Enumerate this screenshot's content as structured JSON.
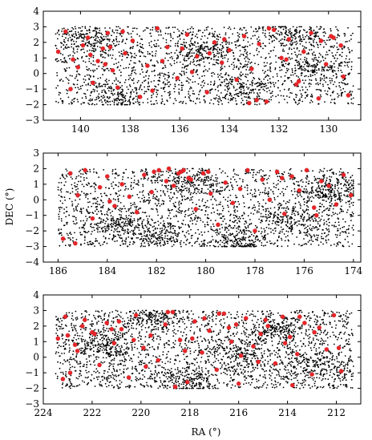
{
  "figure": {
    "shared_ylabel": "DEC (°)",
    "shared_xlabel": "RA (°)"
  },
  "chart_data": [
    {
      "type": "scatter",
      "xlim": [
        141.5,
        128.7
      ],
      "ylim": [
        -3,
        4
      ],
      "x_ticks": [
        140,
        138,
        136,
        134,
        132,
        130
      ],
      "x_tick_labels": [
        "140",
        "138",
        "136",
        "134",
        "132",
        "130"
      ],
      "y_ticks": [
        -3,
        -2,
        -1,
        0,
        1,
        2,
        3,
        4
      ],
      "y_tick_labels": [
        "−3",
        "−2",
        "−1",
        "0",
        "1",
        "2",
        "3",
        "4"
      ],
      "grid": false,
      "xlabel": "",
      "ylabel": "",
      "point_cloud": {
        "ra_range": [
          141,
          129
        ],
        "dec_range": [
          -2,
          3
        ],
        "count": 2600,
        "color": "#000000",
        "seed": 11,
        "clumps": [
          [
            139.5,
            2.2
          ],
          [
            135,
            1.5
          ],
          [
            133.5,
            -1
          ],
          [
            131.5,
            2.4
          ],
          [
            130.5,
            0.5
          ],
          [
            138.5,
            -1.5
          ]
        ]
      },
      "series": [
        {
          "marker_color": "#e8252a",
          "x": [
            140.9,
            140.6,
            140.3,
            139.9,
            139.7,
            139.5,
            139.3,
            139.1,
            138.9,
            138.7,
            138.5,
            138.2,
            137.9,
            137.6,
            137.3,
            136.9,
            136.5,
            136.1,
            135.7,
            135.3,
            134.9,
            134.6,
            134.3,
            134.0,
            133.7,
            133.4,
            133.1,
            132.8,
            132.5,
            132.2,
            131.9,
            131.6,
            131.3,
            131.0,
            130.7,
            130.4,
            130.1,
            129.8,
            129.5,
            129.2,
            140.1,
            139.6,
            138.3,
            137.1,
            135.5,
            134.2,
            132.9,
            131.7,
            130.3,
            129.4,
            140.4,
            138.8,
            136.7,
            134.8,
            133.2,
            131.2,
            129.9,
            139.0,
            135.9,
            132.4
          ],
          "y": [
            1.4,
            2.7,
            0.9,
            1.8,
            2.3,
            -0.6,
            0.8,
            1.6,
            2.6,
            0.2,
            -0.9,
            1.3,
            2.1,
            -1.5,
            0.5,
            2.9,
            1.7,
            -0.3,
            2.5,
            1.1,
            -1.2,
            2.0,
            0.7,
            1.5,
            -0.4,
            2.4,
            0.3,
            1.9,
            -1.8,
            2.8,
            1.0,
            2.2,
            -0.7,
            1.4,
            2.6,
            -1.6,
            0.6,
            2.3,
            1.8,
            -1.4,
            0.4,
            1.2,
            2.7,
            -1.1,
            0.1,
            2.2,
            -1.7,
            0.9,
            2.1,
            -0.2,
            -1.0,
            1.7,
            0.8,
            1.3,
            -1.9,
            -0.5,
            2.4,
            0.6,
            1.6,
            2.9
          ]
        }
      ]
    },
    {
      "type": "scatter",
      "xlim": [
        186.6,
        173.7
      ],
      "ylim": [
        -4,
        3
      ],
      "x_ticks": [
        186,
        184,
        182,
        180,
        178,
        176,
        174
      ],
      "x_tick_labels": [
        "186",
        "184",
        "182",
        "180",
        "178",
        "176",
        "174"
      ],
      "y_ticks": [
        -4,
        -3,
        -2,
        -1,
        0,
        1,
        2,
        3
      ],
      "y_tick_labels": [
        "−4",
        "−3",
        "−2",
        "−1",
        "0",
        "1",
        "2",
        "3"
      ],
      "grid": false,
      "xlabel": "",
      "ylabel": "DEC (°)",
      "point_cloud": {
        "ra_range": [
          186,
          174
        ],
        "dec_range": [
          -3,
          2
        ],
        "count": 2800,
        "color": "#000000",
        "seed": 23,
        "clumps": [
          [
            183.5,
            -1.5
          ],
          [
            180.5,
            1.2
          ],
          [
            178.5,
            -2.7
          ],
          [
            176.5,
            -1.2
          ],
          [
            175,
            0.6
          ],
          [
            182,
            -2.2
          ]
        ]
      },
      "series": [
        {
          "marker_color": "#e8252a",
          "x": [
            185.8,
            185.5,
            185.2,
            184.9,
            184.6,
            184.3,
            184.0,
            183.7,
            183.4,
            183.1,
            182.8,
            182.5,
            182.2,
            181.9,
            181.6,
            181.3,
            181.0,
            180.7,
            180.4,
            180.1,
            179.8,
            179.5,
            179.2,
            178.9,
            178.6,
            178.3,
            178.0,
            177.7,
            177.4,
            177.1,
            176.8,
            176.5,
            176.2,
            175.9,
            175.6,
            175.3,
            175.0,
            174.7,
            174.4,
            174.1,
            181.5,
            181.1,
            180.9,
            180.6,
            182.1,
            183.9,
            176.9,
            175.5,
            179.9,
            185.3
          ],
          "y": [
            -2.5,
            1.7,
            0.3,
            1.9,
            -1.2,
            0.8,
            1.5,
            -0.4,
            1.0,
            0.2,
            -0.8,
            1.6,
            0.5,
            1.9,
            1.2,
            0.9,
            1.8,
            1.4,
            -0.6,
            1.7,
            0.4,
            -1.6,
            1.1,
            -0.2,
            0.7,
            1.9,
            -2.0,
            1.3,
            0.0,
            1.8,
            -0.9,
            1.5,
            0.6,
            1.9,
            -0.5,
            1.2,
            0.9,
            -0.3,
            1.6,
            0.3,
            2.0,
            1.7,
            1.9,
            1.3,
            1.8,
            -0.1,
            1.4,
            -1.0,
            1.8,
            -2.8
          ]
        }
      ]
    },
    {
      "type": "scatter",
      "xlim": [
        224,
        211
      ],
      "ylim": [
        -3,
        4
      ],
      "x_ticks": [
        224,
        222,
        220,
        218,
        216,
        214,
        212
      ],
      "x_tick_labels": [
        "224",
        "222",
        "220",
        "218",
        "216",
        "214",
        "212"
      ],
      "y_ticks": [
        -3,
        -2,
        -1,
        0,
        1,
        2,
        3,
        4
      ],
      "y_tick_labels": [
        "−3",
        "−2",
        "−1",
        "0",
        "1",
        "2",
        "3",
        "4"
      ],
      "grid": false,
      "xlabel": "RA (°)",
      "ylabel": "",
      "point_cloud": {
        "ra_range": [
          223.5,
          211.3
        ],
        "dec_range": [
          -2,
          3
        ],
        "count": 3000,
        "color": "#000000",
        "seed": 37,
        "clumps": [
          [
            214.5,
            1.8
          ],
          [
            216,
            0.2
          ],
          [
            218,
            -1.5
          ],
          [
            213,
            -0.5
          ],
          [
            221.5,
            0.8
          ],
          [
            219.5,
            2.3
          ]
        ]
      },
      "series": [
        {
          "marker_color": "#e8252a",
          "x": [
            223.4,
            223.1,
            222.9,
            222.6,
            222.3,
            222.0,
            221.7,
            221.4,
            221.1,
            220.8,
            220.5,
            220.2,
            219.9,
            219.6,
            219.3,
            219.0,
            218.7,
            218.4,
            218.1,
            217.8,
            217.5,
            217.2,
            216.9,
            216.6,
            216.3,
            216.0,
            215.7,
            215.4,
            215.1,
            214.8,
            214.5,
            214.2,
            213.9,
            213.6,
            213.3,
            213.0,
            212.7,
            212.4,
            212.1,
            211.8,
            223.2,
            222.7,
            221.9,
            220.9,
            219.8,
            218.9,
            217.9,
            216.8,
            215.9,
            214.9,
            213.8,
            212.9,
            211.9,
            222.4,
            218.6,
            216.4,
            214.1,
            217.4,
            220.3,
            215.2,
            223.0,
            218.2,
            216.1,
            213.5,
            221.2
          ],
          "y": [
            1.2,
            2.6,
            -1.0,
            0.4,
            2.4,
            1.6,
            -0.5,
            2.2,
            0.9,
            1.8,
            -1.3,
            2.7,
            0.6,
            1.4,
            -0.2,
            2.1,
            2.9,
            1.1,
            -1.6,
            2.3,
            0.3,
            1.7,
            -0.8,
            2.8,
            1.0,
            -1.7,
            2.5,
            0.7,
            1.5,
            2.0,
            -0.4,
            2.6,
            1.3,
            0.2,
            2.2,
            -1.1,
            1.9,
            0.5,
            2.7,
            -0.9,
            -1.4,
            0.8,
            1.5,
            2.3,
            -0.6,
            2.9,
            1.2,
            2.8,
            0.1,
            2.4,
            -1.8,
            1.6,
            0.6,
            2.0,
            -1.9,
            1.9,
            0.9,
            2.5,
            1.1,
            -0.3,
            1.4,
            0.4,
            2.1,
            2.6,
            1.8
          ]
        }
      ]
    }
  ]
}
